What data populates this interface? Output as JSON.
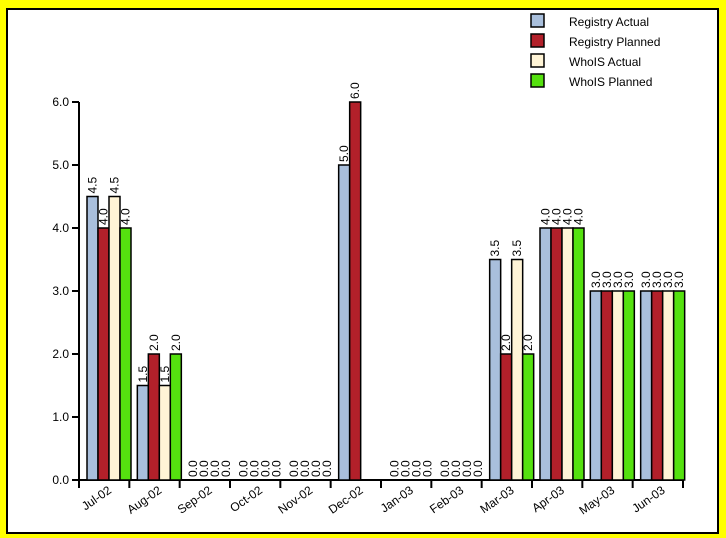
{
  "chart_data": {
    "type": "bar",
    "title": "",
    "xlabel": "",
    "ylabel": "",
    "ylim": [
      0,
      6
    ],
    "yticks": [
      "0.0",
      "1.0",
      "2.0",
      "3.0",
      "4.0",
      "5.0",
      "6.0"
    ],
    "categories": [
      "Jul-02",
      "Aug-02",
      "Sep-02",
      "Oct-02",
      "Nov-02",
      "Dec-02",
      "Jan-03",
      "Feb-03",
      "Mar-03",
      "Apr-03",
      "May-03",
      "Jun-03"
    ],
    "series": [
      {
        "name": "Registry Actual",
        "color": "#a9bfdc",
        "values": [
          4.5,
          1.5,
          0,
          0,
          0,
          5.0,
          0,
          0,
          3.5,
          4.0,
          3.0,
          3.0
        ]
      },
      {
        "name": "Registry Planned",
        "color": "#b2202a",
        "values": [
          4.0,
          2.0,
          0,
          0,
          0,
          6.0,
          0,
          0,
          2.0,
          4.0,
          3.0,
          3.0
        ]
      },
      {
        "name": "WhoIS Actual",
        "color": "#fff4d6",
        "values": [
          4.5,
          1.5,
          0,
          0,
          0,
          null,
          0,
          0,
          3.5,
          4.0,
          3.0,
          3.0
        ]
      },
      {
        "name": "WhoIS Planned",
        "color": "#55e10f",
        "values": [
          4.0,
          2.0,
          0,
          0,
          0,
          null,
          0,
          0,
          2.0,
          4.0,
          3.0,
          3.0
        ]
      }
    ],
    "legend_position": "top-right",
    "grid": false
  }
}
